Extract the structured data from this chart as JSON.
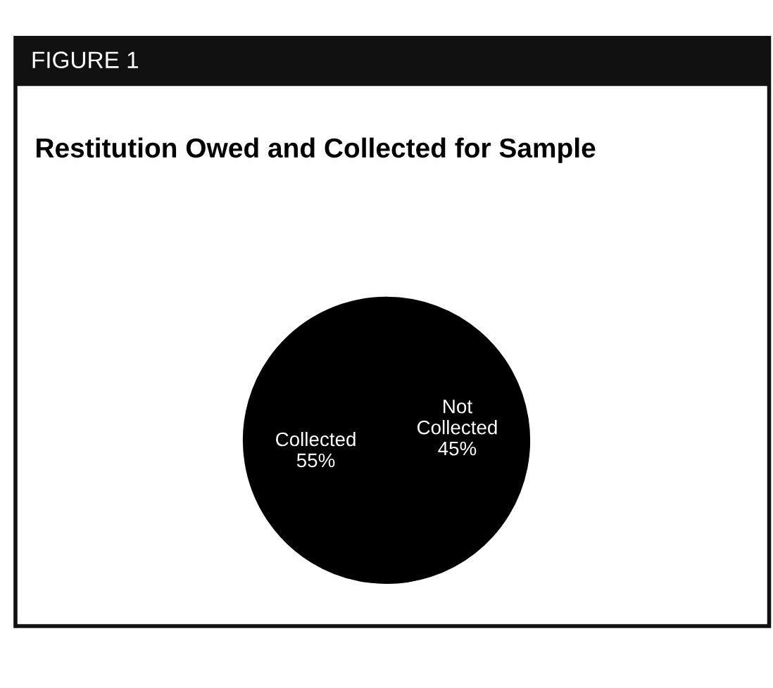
{
  "chart_data": {
    "type": "pie",
    "title": "Restitution Owed and Collected for Sample",
    "annotations": [
      "FIGURE 1"
    ],
    "categories": [
      "Collected",
      "Not Collected"
    ],
    "values": [
      55,
      45
    ],
    "colors": [
      "#000000",
      "#000000"
    ],
    "legend": false,
    "value_labels": [
      "55%",
      "45%"
    ]
  }
}
